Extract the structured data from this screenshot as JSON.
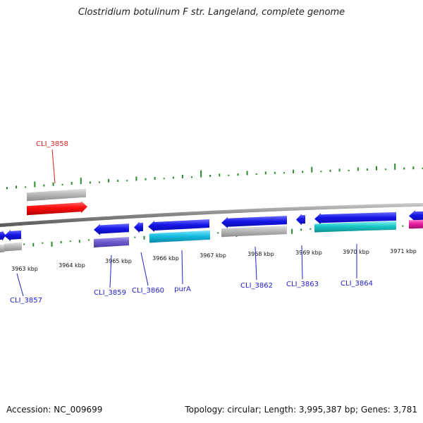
{
  "title": "Clostridium botulinum F str. Langeland, complete genome",
  "footer": {
    "accession": "Accession: NC_009699",
    "topology": "Topology: circular; Length: 3,995,387 bp; Genes: 3,781"
  },
  "colors": {
    "backbone": "#8a8a8a",
    "blue_cds": "#1515e6",
    "grey": "#b9b9b9",
    "red": "#ff1010",
    "purple": "#6e5ccf",
    "cyan": "#16bde0",
    "teal": "#1ac8c8",
    "magenta": "#ea1ea0",
    "gc_tick": "#2a8a2a",
    "label_blue": "#2222cc",
    "label_red": "#dd2222"
  },
  "kbp_ticks": [
    "3963 kbp",
    "3964 kbp",
    "3965 kbp",
    "3966 kbp",
    "3967 kbp",
    "3968 kbp",
    "3969 kbp",
    "3970 kbp",
    "3971 kbp"
  ],
  "gene_labels": [
    {
      "id": "cli-3858",
      "text": "CLI_3858",
      "color": "label_red"
    },
    {
      "id": "cli-3857",
      "text": "CLI_3857",
      "color": "label_blue"
    },
    {
      "id": "cli-3859",
      "text": "CLI_3859",
      "color": "label_blue"
    },
    {
      "id": "cli-3860",
      "text": "CLI_3860",
      "color": "label_blue"
    },
    {
      "id": "pura",
      "text": "purA",
      "color": "label_blue"
    },
    {
      "id": "cli-3862",
      "text": "CLI_3862",
      "color": "label_blue"
    },
    {
      "id": "cli-3863",
      "text": "CLI_3863",
      "color": "label_blue"
    },
    {
      "id": "cli-3864",
      "text": "CLI_3864",
      "color": "label_blue"
    }
  ]
}
